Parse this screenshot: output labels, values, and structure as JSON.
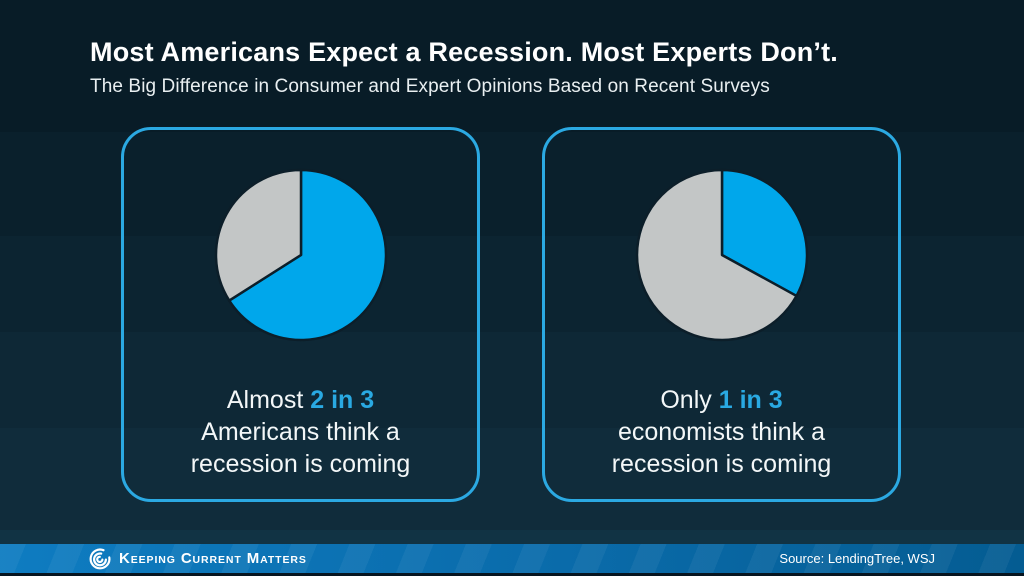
{
  "page": {
    "title": "Most Americans Expect a Recession. Most Experts Don’t.",
    "subtitle": "The Big Difference in Consumer and Expert Opinions Based on Recent Surveys"
  },
  "colors": {
    "accent_text_blue": "#29A9E2",
    "card_border_blue": "#2BA9E2",
    "pie_blue": "#00A7EB",
    "pie_gray": "#C3C6C6",
    "slice_outline": "#0C1E29",
    "footer_blue_left": "#0E7CC1",
    "footer_blue_right": "#045C92"
  },
  "chart_data": [
    {
      "type": "pie",
      "start_angle_deg": 0,
      "direction": "clockwise",
      "slices": [
        {
          "label": "Americans who think a recession is coming",
          "value": 66,
          "color": "#00A7EB"
        },
        {
          "label": "remainder",
          "value": 34,
          "color": "#C3C6C6"
        }
      ],
      "caption": {
        "prefix": "Almost",
        "ratio": "2 in 3",
        "line2": "Americans think a",
        "line3": "recession is coming"
      }
    },
    {
      "type": "pie",
      "start_angle_deg": 0,
      "direction": "clockwise",
      "slices": [
        {
          "label": "economists who think a recession is coming",
          "value": 33,
          "color": "#00A7EB"
        },
        {
          "label": "remainder",
          "value": 67,
          "color": "#C3C6C6"
        }
      ],
      "caption": {
        "prefix": "Only",
        "ratio": "1 in 3",
        "line2": "economists think a",
        "line3": "recession is coming"
      }
    }
  ],
  "footer": {
    "brand": "Keeping Current Matters",
    "brand_words": [
      "Keeping",
      "Current",
      "Matters"
    ],
    "source": "Source: LendingTree, WSJ"
  }
}
